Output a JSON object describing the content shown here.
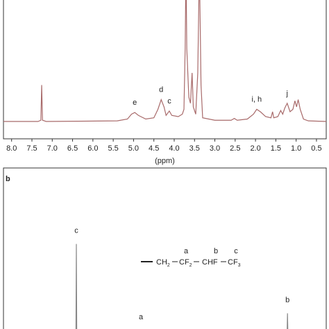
{
  "chart_data": [
    {
      "type": "line",
      "xlabel": "(ppm)",
      "xlim": [
        8.2,
        0.26
      ],
      "ylim": [
        0,
        100
      ],
      "xticks": [
        {
          "value": 8,
          "label": "8.0"
        },
        7.5,
        {
          "value": 7,
          "label": "7.0"
        },
        6.5,
        {
          "value": 6,
          "label": "6.0"
        },
        5.5,
        {
          "value": 5,
          "label": "5.0"
        },
        4.5,
        {
          "value": 4,
          "label": "4.0"
        },
        3.5,
        {
          "value": 3,
          "label": "3.0"
        },
        2.5,
        {
          "value": 2,
          "label": "2.0"
        },
        1.5,
        {
          "value": 1,
          "label": "1.0"
        },
        0.5
      ],
      "series": [
        {
          "color": "#a86a6a",
          "x": [
            8.2,
            7.35,
            7.28,
            7.26,
            7.24,
            7.15,
            5.4,
            5.15,
            5.05,
            4.97,
            4.88,
            4.7,
            4.5,
            4.4,
            4.32,
            4.25,
            4.2,
            4.12,
            4.06,
            3.9,
            3.8,
            3.76,
            3.73,
            3.71,
            3.69,
            3.64,
            3.6,
            3.56,
            3.53,
            3.47,
            3.42,
            3.38,
            3.34,
            3.3,
            3.0,
            2.6,
            2.52,
            2.45,
            2.2,
            2.05,
            1.97,
            1.88,
            1.75,
            1.62,
            1.58,
            1.55,
            1.45,
            1.38,
            1.33,
            1.28,
            1.22,
            1.15,
            1.08,
            1.03,
            0.99,
            0.95,
            0.9,
            0.82,
            0.7,
            0.26
          ],
          "values": [
            0,
            0,
            1,
            30,
            1,
            0,
            0.5,
            2,
            6,
            7.4,
            5,
            2,
            3,
            10,
            18,
            12,
            5,
            8.6,
            5,
            4,
            6,
            10,
            60,
            130,
            60,
            20,
            15,
            40,
            12,
            6,
            40,
            130,
            30,
            3,
            1,
            1,
            2.5,
            1,
            2,
            6,
            10,
            8,
            4,
            3,
            8,
            3,
            4,
            9,
            6,
            11,
            15,
            8,
            10,
            17,
            12,
            18,
            10,
            2,
            0.5,
            0
          ]
        }
      ],
      "annotations": [
        {
          "text": "e",
          "x": 4.97,
          "y": 7.4
        },
        {
          "text": "d",
          "x": 4.32,
          "y": 18
        },
        {
          "text": "c",
          "x": 4.12,
          "y": 8.6
        },
        {
          "text": "i, h",
          "x": 1.97,
          "y": 10
        },
        {
          "text": "j",
          "x": 1.22,
          "y": 15
        }
      ]
    },
    {
      "type": "line",
      "panel_label": "b",
      "xlim": [
        -60,
        -215
      ],
      "ylim": [
        0,
        100
      ],
      "series": [
        {
          "color": "#888888",
          "x": [
            -60,
            -94.8,
            -95,
            -95.2,
            -196.2,
            -196.4,
            -196.6,
            -215
          ],
          "values": [
            0,
            0,
            54,
            0,
            0,
            12,
            0,
            0
          ]
        }
      ],
      "annotations": [
        {
          "text": "c",
          "x": -95,
          "y": 54
        },
        {
          "text": "a",
          "x": -126,
          "y": 1.7
        },
        {
          "text": "b",
          "x": -196.4,
          "y": 12
        }
      ],
      "structure": {
        "groups": [
          {
            "main": "CH",
            "sub": "2"
          },
          {
            "main": "CF",
            "sub": "2"
          },
          {
            "main": "CHF"
          },
          {
            "main": "CF",
            "sub": "3"
          }
        ],
        "labels": [
          "a",
          "b",
          "c"
        ]
      }
    }
  ]
}
